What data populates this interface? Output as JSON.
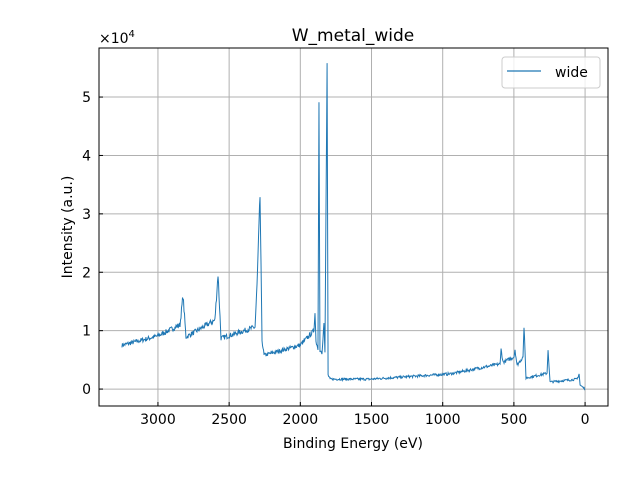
{
  "chart_data": {
    "type": "line",
    "title": "W_metal_wide",
    "xlabel": "Binding Energy (eV)",
    "ylabel": "Intensity (a.u.)",
    "y_multiplier": "×10",
    "y_multiplier_exp": "4",
    "xlim": [
      3414,
      -161
    ],
    "ylim": [
      -0.29,
      5.84
    ],
    "x_reversed": true,
    "grid": true,
    "legend_position": "top-right",
    "xticks": [
      3000,
      2500,
      2000,
      1500,
      1000,
      500,
      0
    ],
    "yticks": [
      0,
      1,
      2,
      3,
      4,
      5
    ],
    "series": [
      {
        "name": "wide",
        "color": "#1f77b4",
        "unit_note": "y in units of 1e4",
        "points": [
          [
            3253,
            0.75
          ],
          [
            3000,
            0.91
          ],
          [
            2845,
            1.1
          ],
          [
            2824,
            1.6
          ],
          [
            2803,
            0.89
          ],
          [
            2600,
            1.18
          ],
          [
            2578,
            1.97
          ],
          [
            2557,
            0.87
          ],
          [
            2318,
            1.06
          ],
          [
            2304,
            1.78
          ],
          [
            2283,
            3.3
          ],
          [
            2269,
            0.84
          ],
          [
            2255,
            0.58
          ],
          [
            2002,
            0.75
          ],
          [
            1904,
            1.0
          ],
          [
            1897,
            1.3
          ],
          [
            1890,
            0.84
          ],
          [
            1876,
            0.67
          ],
          [
            1869,
            4.91
          ],
          [
            1862,
            0.67
          ],
          [
            1848,
            0.63
          ],
          [
            1834,
            1.13
          ],
          [
            1827,
            0.63
          ],
          [
            1812,
            5.58
          ],
          [
            1805,
            0.24
          ],
          [
            1791,
            0.17
          ],
          [
            1510,
            0.17
          ],
          [
            948,
            0.26
          ],
          [
            597,
            0.43
          ],
          [
            590,
            0.68
          ],
          [
            576,
            0.46
          ],
          [
            499,
            0.55
          ],
          [
            492,
            0.68
          ],
          [
            478,
            0.41
          ],
          [
            436,
            0.55
          ],
          [
            429,
            1.08
          ],
          [
            415,
            0.19
          ],
          [
            267,
            0.27
          ],
          [
            260,
            0.67
          ],
          [
            246,
            0.12
          ],
          [
            56,
            0.17
          ],
          [
            42,
            0.26
          ],
          [
            35,
            0.07
          ],
          [
            0,
            0.0
          ]
        ]
      }
    ]
  }
}
